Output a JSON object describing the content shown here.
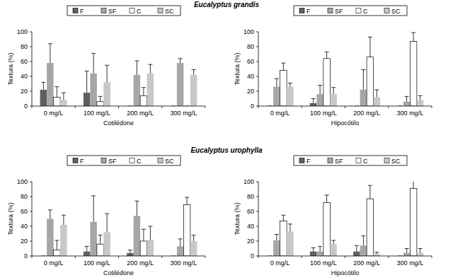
{
  "chart_data": [
    {
      "type": "bar",
      "title": "Eucalyptus grandis",
      "x_label": "Cotilédone",
      "y_label": "Textura (%)",
      "categories": [
        "0 mg/L",
        "100 mg/L",
        "200 mg/L",
        "300 mg/L"
      ],
      "ylim": [
        0,
        100
      ],
      "yticks": [
        0,
        20,
        40,
        60,
        80,
        100
      ],
      "grid": false,
      "legend": "top",
      "series": [
        {
          "name": "F",
          "color": "#606060",
          "values": [
            22,
            18,
            0,
            0
          ],
          "errors": [
            10,
            29,
            0,
            0
          ]
        },
        {
          "name": "SF",
          "color": "#a6a6a6",
          "values": [
            58,
            44,
            42,
            58
          ],
          "errors": [
            26,
            27,
            19,
            6
          ]
        },
        {
          "name": "C",
          "color": "#ffffff",
          "values": [
            12,
            6,
            14,
            0
          ],
          "errors": [
            14,
            7,
            11,
            0
          ]
        },
        {
          "name": "SC",
          "color": "#c8c8c8",
          "values": [
            8,
            32,
            44,
            42
          ],
          "errors": [
            10,
            23,
            12,
            7
          ]
        }
      ]
    },
    {
      "type": "bar",
      "x_label": "Hipocótilo",
      "y_label": "Textura (%)",
      "categories": [
        "0 mg/L",
        "100 mg/L",
        "200 mg/L",
        "300 mg/L"
      ],
      "ylim": [
        0,
        100
      ],
      "yticks": [
        0,
        20,
        40,
        60,
        80,
        100
      ],
      "grid": false,
      "legend": "top",
      "series": [
        {
          "name": "F",
          "color": "#606060",
          "values": [
            0,
            4,
            0,
            0
          ],
          "errors": [
            0,
            6,
            0,
            0
          ]
        },
        {
          "name": "SF",
          "color": "#a6a6a6",
          "values": [
            26,
            16,
            22,
            6
          ],
          "errors": [
            11,
            12,
            27,
            7
          ]
        },
        {
          "name": "C",
          "color": "#ffffff",
          "values": [
            48,
            64,
            66,
            87
          ],
          "errors": [
            10,
            9,
            27,
            12
          ]
        },
        {
          "name": "SC",
          "color": "#c8c8c8",
          "values": [
            26,
            16,
            12,
            8
          ],
          "errors": [
            5,
            9,
            10,
            6
          ]
        }
      ]
    },
    {
      "type": "bar",
      "title": "Eucalyptus urophylla",
      "x_label": "Cotilédone",
      "y_label": "Textura (%)",
      "categories": [
        "0 mg/L",
        "100 mg/L",
        "200 mg/L",
        "300 mg/L"
      ],
      "ylim": [
        0,
        100
      ],
      "yticks": [
        0,
        20,
        40,
        60,
        80,
        100
      ],
      "grid": false,
      "legend": "top",
      "series": [
        {
          "name": "F",
          "color": "#606060",
          "values": [
            0,
            6,
            4,
            0
          ],
          "errors": [
            0,
            7,
            4,
            0
          ]
        },
        {
          "name": "SF",
          "color": "#a6a6a6",
          "values": [
            50,
            46,
            54,
            13
          ],
          "errors": [
            12,
            35,
            20,
            10
          ]
        },
        {
          "name": "C",
          "color": "#ffffff",
          "values": [
            8,
            16,
            20,
            69
          ],
          "errors": [
            13,
            12,
            16,
            10
          ]
        },
        {
          "name": "SC",
          "color": "#c8c8c8",
          "values": [
            42,
            32,
            22,
            20
          ],
          "errors": [
            13,
            25,
            18,
            8
          ]
        }
      ]
    },
    {
      "type": "bar",
      "x_label": "Hipocótilo",
      "y_label": "Textura (%)",
      "categories": [
        "0 mg/L",
        "100 mg/L",
        "200 mg/L",
        "300 mg/L"
      ],
      "ylim": [
        0,
        100
      ],
      "yticks": [
        0,
        20,
        40,
        60,
        80,
        100
      ],
      "grid": false,
      "legend": "top",
      "series": [
        {
          "name": "F",
          "color": "#606060",
          "values": [
            0,
            6,
            6,
            0
          ],
          "errors": [
            0,
            5,
            8,
            0
          ]
        },
        {
          "name": "SF",
          "color": "#a6a6a6",
          "values": [
            21,
            6,
            14,
            4
          ],
          "errors": [
            8,
            7,
            13,
            6
          ]
        },
        {
          "name": "C",
          "color": "#ffffff",
          "values": [
            47,
            72,
            77,
            91
          ],
          "errors": [
            8,
            10,
            18,
            13
          ]
        },
        {
          "name": "SC",
          "color": "#c8c8c8",
          "values": [
            33,
            16,
            3,
            4
          ],
          "errors": [
            10,
            5,
            2,
            6
          ]
        }
      ]
    }
  ]
}
